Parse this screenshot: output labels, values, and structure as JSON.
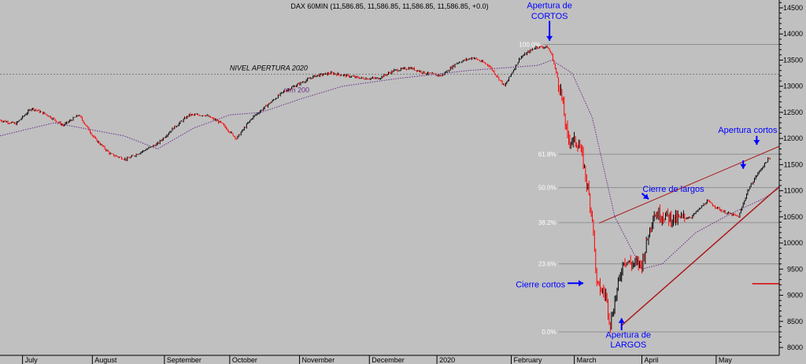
{
  "chart_data": {
    "type": "candlestick",
    "title": "DAX 60MIN (11,586.85, 11,586.85, 11,586.85, 11,586.85, +0.0)",
    "ylim": [
      7850,
      14650
    ],
    "yticks": [
      8000,
      8500,
      9000,
      9500,
      10000,
      10500,
      11000,
      11500,
      12000,
      12500,
      13000,
      13500,
      14000,
      14500
    ],
    "xlabels": [
      "July",
      "August",
      "September",
      "October",
      "November",
      "December",
      "2020",
      "February",
      "March",
      "April",
      "May"
    ],
    "xlabel_dates": [
      "2019-07-01",
      "2019-08-01",
      "2019-09-02",
      "2019-10-01",
      "2019-11-01",
      "2019-12-02",
      "2020-01-01",
      "2020-02-03",
      "2020-03-02",
      "2020-04-01",
      "2020-05-04"
    ],
    "date_range": [
      "2019-06-21",
      "2020-06-01"
    ],
    "series": [
      {
        "name": "DAX 60MIN",
        "x": [
          "2019-06-21",
          "2019-06-28",
          "2019-07-05",
          "2019-07-12",
          "2019-07-19",
          "2019-07-26",
          "2019-08-02",
          "2019-08-09",
          "2019-08-16",
          "2019-08-23",
          "2019-08-30",
          "2019-09-06",
          "2019-09-13",
          "2019-09-20",
          "2019-09-27",
          "2019-10-04",
          "2019-10-11",
          "2019-10-18",
          "2019-10-25",
          "2019-11-01",
          "2019-11-08",
          "2019-11-15",
          "2019-11-22",
          "2019-11-29",
          "2019-12-06",
          "2019-12-13",
          "2019-12-20",
          "2019-12-27",
          "2020-01-03",
          "2020-01-10",
          "2020-01-17",
          "2020-01-24",
          "2020-01-31",
          "2020-02-07",
          "2020-02-14",
          "2020-02-19",
          "2020-02-21",
          "2020-02-25",
          "2020-02-28",
          "2020-03-04",
          "2020-03-06",
          "2020-03-10",
          "2020-03-12",
          "2020-03-16",
          "2020-03-18",
          "2020-03-20",
          "2020-03-24",
          "2020-03-27",
          "2020-04-01",
          "2020-04-06",
          "2020-04-09",
          "2020-04-16",
          "2020-04-23",
          "2020-04-30",
          "2020-05-07",
          "2020-05-14",
          "2020-05-18",
          "2020-05-22",
          "2020-05-27"
        ],
        "close": [
          12350,
          12280,
          12580,
          12450,
          12250,
          12450,
          12000,
          11700,
          11600,
          11750,
          11900,
          12200,
          12450,
          12450,
          12300,
          12000,
          12400,
          12650,
          12900,
          13050,
          13200,
          13250,
          13200,
          13150,
          13150,
          13300,
          13350,
          13250,
          13200,
          13450,
          13550,
          13400,
          13000,
          13550,
          13750,
          13750,
          13600,
          12900,
          12000,
          11900,
          11550,
          10500,
          9200,
          9000,
          8450,
          8900,
          9700,
          9600,
          9600,
          10550,
          10550,
          10450,
          10500,
          10800,
          10600,
          10500,
          11000,
          11300,
          11600
        ]
      },
      {
        "name": "mm 200",
        "x": [
          "2019-06-21",
          "2019-07-15",
          "2019-08-15",
          "2019-08-30",
          "2019-09-15",
          "2019-10-01",
          "2019-10-15",
          "2019-11-01",
          "2019-11-20",
          "2019-12-15",
          "2020-01-15",
          "2020-02-15",
          "2020-02-21",
          "2020-03-01",
          "2020-03-10",
          "2020-03-20",
          "2020-04-01",
          "2020-04-10",
          "2020-04-25",
          "2020-05-10",
          "2020-05-25",
          "2020-06-01"
        ],
        "values": [
          12050,
          12300,
          12050,
          11800,
          12200,
          12450,
          12500,
          12750,
          13000,
          13150,
          13300,
          13400,
          13500,
          13250,
          12400,
          10500,
          9500,
          9600,
          10200,
          10550,
          10850,
          11050
        ]
      }
    ],
    "fib_levels": [
      {
        "label": "100.0%",
        "value": 13800
      },
      {
        "label": "61.8%",
        "value": 11700
      },
      {
        "label": "50.0%",
        "value": 11060
      },
      {
        "label": "38.2%",
        "value": 10390
      },
      {
        "label": "23.6%",
        "value": 9600
      },
      {
        "label": "0.0%",
        "value": 8300
      }
    ],
    "lines": [
      {
        "name": "NIVEL APERTURA 2020",
        "value": 13230
      },
      {
        "name": "support-trendline",
        "from": [
          "2020-03-23",
          8420
        ],
        "to": [
          "2020-06-01",
          11080
        ]
      },
      {
        "name": "resistance-trendline",
        "from": [
          "2020-03-13",
          10380
        ],
        "to": [
          "2020-06-01",
          11850
        ]
      },
      {
        "name": "target-level",
        "from": [
          "2020-05-20",
          9220
        ],
        "to": [
          "2020-06-01",
          9220
        ]
      }
    ],
    "annotations": [
      {
        "text": "Apertura de",
        "x": "2020-02-20",
        "y": 14550
      },
      {
        "text": "CORTOS",
        "x": "2020-02-20",
        "y": 14350
      },
      {
        "text": "Cierre de largos",
        "x": "2020-04-15",
        "y": 11040
      },
      {
        "text": "Apertura cortos",
        "x": "2020-05-18",
        "y": 12170
      },
      {
        "text": "Cierre cortos",
        "x": "2020-02-27",
        "y": 9210
      },
      {
        "text": "Apertura de",
        "x": "2020-03-26",
        "y": 8250
      },
      {
        "text": "LARGOS",
        "x": "2020-03-26",
        "y": 8060
      }
    ],
    "labels": {
      "nivel": "NIVEL APERTURA 2020",
      "mm200": "mm 200"
    },
    "colors": {
      "background": "#c0c0c0",
      "candle_up": "#000000",
      "candle_down": "#ff0000",
      "mm200": "#6a2a8a",
      "trendline": "#aa1a1a",
      "annotation": "#0000ff",
      "target": "#dd0000"
    }
  }
}
